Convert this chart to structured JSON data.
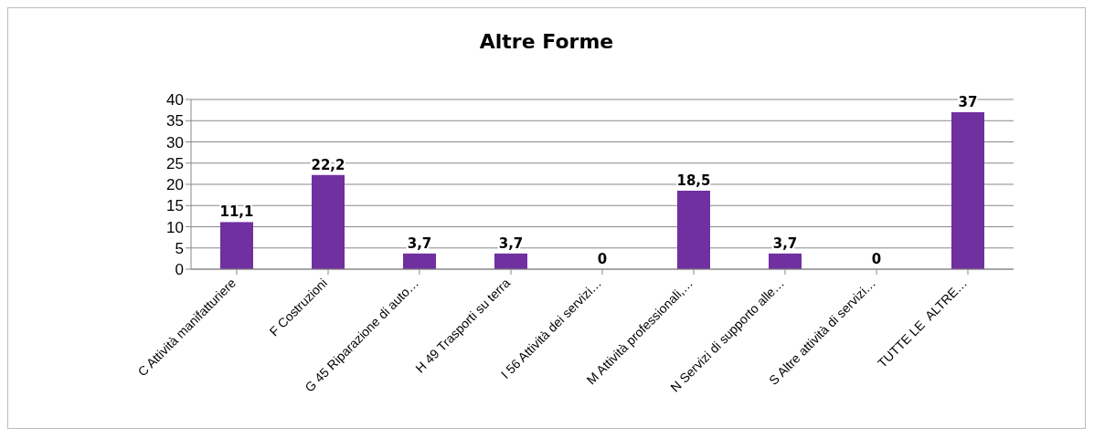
{
  "chart_data": {
    "type": "bar",
    "title": "Altre Forme",
    "categories": [
      "C Attività manifatturiere",
      "F Costruzioni",
      "G 45 Riparazione di auto…",
      "H 49 Trasporti su terra",
      "I 56 Attività dei servizi…",
      "M Attività professionali,…",
      "N Servizi di supporto alle…",
      "S Altre attività di servizi…",
      "TUTTE LE  ALTRE…"
    ],
    "values": [
      11.1,
      22.2,
      3.7,
      3.7,
      0,
      18.5,
      3.7,
      0,
      37
    ],
    "value_labels": [
      "11,1",
      "22,2",
      "3,7",
      "3,7",
      "0",
      "18,5",
      "3,7",
      "0",
      "37"
    ],
    "color": "#7030a0",
    "ylim": [
      0,
      40
    ],
    "yticks": [
      0,
      5,
      10,
      15,
      20,
      25,
      30,
      35,
      40
    ],
    "grid": "y",
    "legend": false
  }
}
